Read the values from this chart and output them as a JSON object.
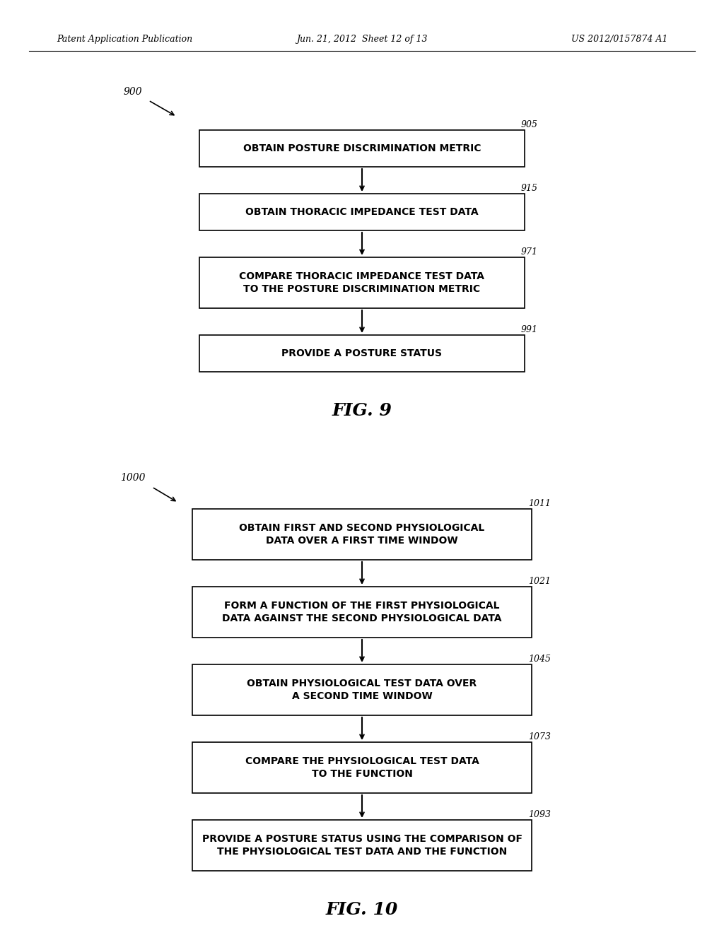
{
  "background_color": "#ffffff",
  "header_left": "Patent Application Publication",
  "header_mid": "Jun. 21, 2012  Sheet 12 of 13",
  "header_right": "US 2012/0157874 A1",
  "fig9": {
    "label": "900",
    "fig_label": "FIG. 9",
    "steps": [
      {
        "id": "905",
        "text": "OBTAIN POSTURE DISCRIMINATION METRIC",
        "lines": 1
      },
      {
        "id": "915",
        "text": "OBTAIN THORACIC IMPEDANCE TEST DATA",
        "lines": 1
      },
      {
        "id": "971",
        "text": "COMPARE THORACIC IMPEDANCE TEST DATA\nTO THE POSTURE DISCRIMINATION METRIC",
        "lines": 2
      },
      {
        "id": "991",
        "text": "PROVIDE A POSTURE STATUS",
        "lines": 1
      }
    ]
  },
  "fig10": {
    "label": "1000",
    "fig_label": "FIG. 10",
    "steps": [
      {
        "id": "1011",
        "text": "OBTAIN FIRST AND SECOND PHYSIOLOGICAL\nDATA OVER A FIRST TIME WINDOW",
        "lines": 2
      },
      {
        "id": "1021",
        "text": "FORM A FUNCTION OF THE FIRST PHYSIOLOGICAL\nDATA AGAINST THE SECOND PHYSIOLOGICAL DATA",
        "lines": 2
      },
      {
        "id": "1045",
        "text": "OBTAIN PHYSIOLOGICAL TEST DATA OVER\nA SECOND TIME WINDOW",
        "lines": 2
      },
      {
        "id": "1073",
        "text": "COMPARE THE PHYSIOLOGICAL TEST DATA\nTO THE FUNCTION",
        "lines": 2
      },
      {
        "id": "1093",
        "text": "PROVIDE A POSTURE STATUS USING THE COMPARISON OF\nTHE PHYSIOLOGICAL TEST DATA AND THE FUNCTION",
        "lines": 2
      }
    ]
  }
}
